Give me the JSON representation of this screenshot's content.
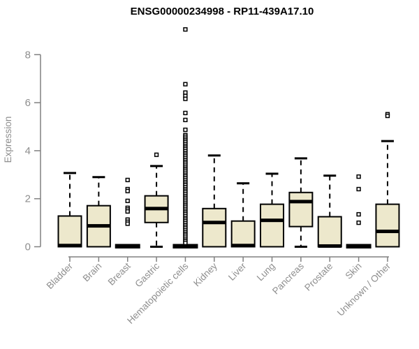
{
  "window": {
    "title": "ENSG00000234998 - RP11-439A17.10"
  },
  "colors": {
    "box_fill": "#EDE8CC",
    "box_stroke": "#000000",
    "median_color": "#000000",
    "whisker_color": "#000000",
    "outlier_stroke": "#000000",
    "outlier_fill": "#ffffff",
    "axis_line": "#808080",
    "text_gray": "#8e8e8e",
    "title_color": "#000000",
    "background": "#ffffff"
  },
  "chart_data": {
    "type": "boxplot",
    "title": "ENSG00000234998 - RP11-439A17.10",
    "xlabel": "",
    "ylabel": "Expression",
    "ylim": [
      0,
      9.2
    ],
    "yticks": [
      0,
      2,
      4,
      6,
      8
    ],
    "grid": false,
    "legend": "none",
    "categories": [
      "Bladder",
      "Brain",
      "Breast",
      "Gastric",
      "Hematopoietic cells",
      "Kidney",
      "Liver",
      "Lung",
      "Pancreas",
      "Prostate",
      "Skin",
      "Unknown / Other"
    ],
    "boxes": [
      {
        "category": "Bladder",
        "whisker_low": 0,
        "q1": 0,
        "median": 0.05,
        "q3": 1.28,
        "whisker_high": 3.07,
        "outliers": []
      },
      {
        "category": "Brain",
        "whisker_low": 0,
        "q1": 0,
        "median": 0.87,
        "q3": 1.71,
        "whisker_high": 2.9,
        "outliers": []
      },
      {
        "category": "Breast",
        "whisker_low": 0,
        "q1": 0,
        "median": 0,
        "q3": 0,
        "whisker_high": 0,
        "outliers": [
          2.78,
          2.4,
          2.32,
          1.91,
          1.62,
          1.55,
          1.47,
          1.13,
          1.04,
          0.96
        ]
      },
      {
        "category": "Gastric",
        "whisker_low": 0,
        "q1": 1.01,
        "median": 1.59,
        "q3": 2.12,
        "whisker_high": 3.36,
        "outliers": [
          3.83
        ]
      },
      {
        "category": "Hematopoietic cells",
        "whisker_low": 0,
        "q1": 0,
        "median": 0,
        "q3": 0,
        "whisker_high": 0,
        "outliers": [
          9.05,
          6.77,
          6.42,
          6.28,
          6.16,
          5.57,
          5.28,
          4.87,
          4.65,
          4.58,
          4.5,
          4.43,
          4.36,
          4.28,
          4.2,
          4.13,
          4.06,
          3.98,
          3.9,
          3.83,
          3.76,
          3.68,
          3.6,
          3.53,
          3.46,
          3.38,
          3.3,
          3.23,
          3.16,
          3.08,
          3.0,
          2.93,
          2.86,
          2.78,
          2.7,
          2.63,
          2.56,
          2.48,
          2.4,
          2.33,
          2.26,
          2.18,
          2.1,
          2.03,
          1.96,
          1.88,
          1.8,
          1.73,
          1.66,
          1.58,
          1.5,
          1.43,
          1.36,
          1.28,
          1.2,
          1.13,
          1.06,
          0.98,
          0.9,
          0.83,
          0.76,
          0.68,
          0.6,
          0.53,
          0.46,
          0.38,
          0.3,
          0.23,
          0.16
        ]
      },
      {
        "category": "Kidney",
        "whisker_low": 0,
        "q1": 0,
        "median": 1.01,
        "q3": 1.59,
        "whisker_high": 3.8,
        "outliers": []
      },
      {
        "category": "Liver",
        "whisker_low": 0,
        "q1": 0,
        "median": 0.05,
        "q3": 1.07,
        "whisker_high": 2.64,
        "outliers": []
      },
      {
        "category": "Lung",
        "whisker_low": 0,
        "q1": 0,
        "median": 1.1,
        "q3": 1.77,
        "whisker_high": 3.04,
        "outliers": []
      },
      {
        "category": "Pancreas",
        "whisker_low": 0,
        "q1": 0.84,
        "median": 1.88,
        "q3": 2.26,
        "whisker_high": 3.68,
        "outliers": []
      },
      {
        "category": "Prostate",
        "whisker_low": 0,
        "q1": 0,
        "median": 0.03,
        "q3": 1.25,
        "whisker_high": 2.96,
        "outliers": []
      },
      {
        "category": "Skin",
        "whisker_low": 0,
        "q1": 0,
        "median": 0,
        "q3": 0,
        "whisker_high": 0,
        "outliers": [
          2.92,
          2.4,
          1.35,
          1.0
        ]
      },
      {
        "category": "Unknown / Other",
        "whisker_low": 0,
        "q1": 0,
        "median": 0.64,
        "q3": 1.77,
        "whisker_high": 4.4,
        "outliers": [
          5.52,
          5.45
        ]
      }
    ]
  }
}
